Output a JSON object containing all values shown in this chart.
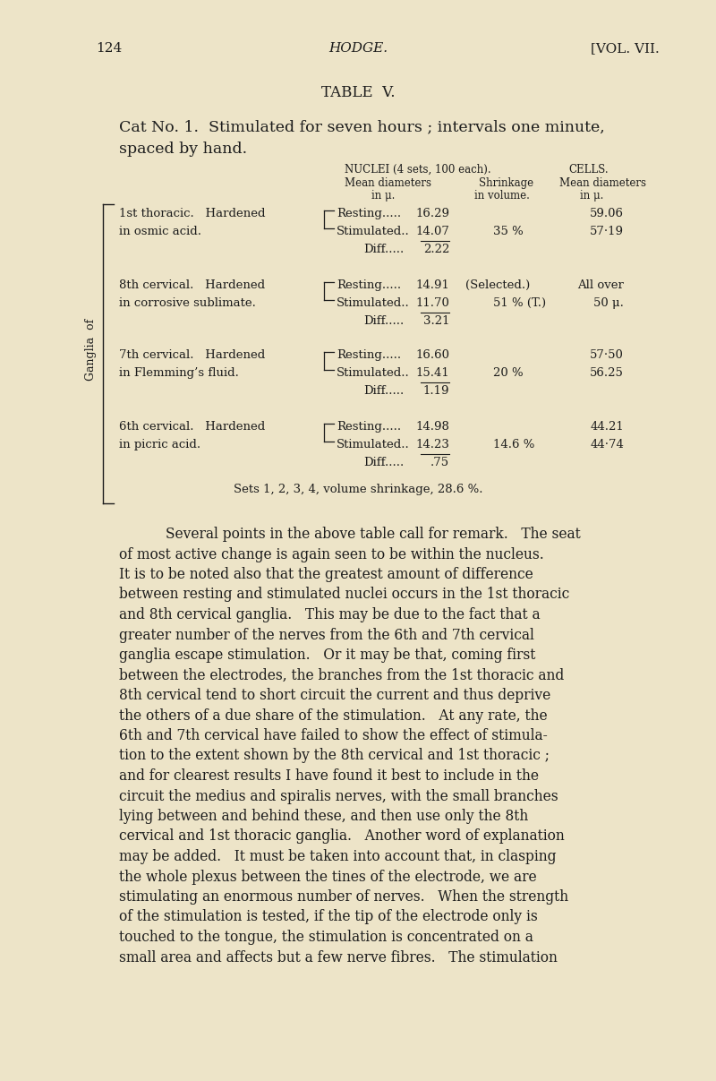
{
  "bg_color": "#ede4c8",
  "text_color": "#1c1c1c",
  "page_number": "124",
  "header_title": "HODGE.",
  "header_right": "[VOL. VII.",
  "table_title": "TABLE  V.",
  "subtitle_line1": "Cat No. 1.  Stimulated for seven hours ; intervals one minute,",
  "subtitle_line2": "spaced by hand.",
  "col_nuclei": "NUCLEI (4 sets, 100 each).",
  "col_nuclei_sub1": "Mean diameters",
  "col_nuclei_sub2": "in μ.",
  "col_shrink": "Shrinkage",
  "col_shrink2": "in volume.",
  "col_cells": "CELLS.",
  "col_cells_sub1": "Mean diameters",
  "col_cells_sub2": "in μ.",
  "ganglia_rotated": "Ganglia  of",
  "table_rows": [
    {
      "line1_left": "1st thoracic.   Hardened",
      "line2_left": "in osmic acid.",
      "resting_val": "16.29",
      "stim_val": "14.07",
      "diff_val": "2.22",
      "shrinkage_val": "35 %",
      "cells_resting": "59.06",
      "cells_stim": "57·19",
      "selected_note": "",
      "cells_resting_special": ""
    },
    {
      "line1_left": "8th cervical.   Hardened",
      "line2_left": "in corrosive sublimate.",
      "resting_val": "14.91",
      "stim_val": "11.70",
      "diff_val": "3.21",
      "shrinkage_val": "51 % (T.)",
      "cells_resting": "All over",
      "cells_stim": "50 μ.",
      "selected_note": "(Selected.)",
      "cells_resting_special": "All over"
    },
    {
      "line1_left": "7th cervical.   Hardened",
      "line2_left": "in Flemming’s fluid.",
      "resting_val": "16.60",
      "stim_val": "15.41",
      "diff_val": "1.19",
      "shrinkage_val": "20 %",
      "cells_resting": "57·50",
      "cells_stim": "56.25",
      "selected_note": "",
      "cells_resting_special": ""
    },
    {
      "line1_left": "6th cervical.   Hardened",
      "line2_left": "in picric acid.",
      "resting_val": "14.98",
      "stim_val": "14.23",
      "diff_val": ".75",
      "shrinkage_val": "14.6 %",
      "cells_resting": "44.21",
      "cells_stim": "44·74",
      "selected_note": "",
      "cells_resting_special": ""
    }
  ],
  "footer": "Sets 1, 2, 3, 4, volume shrinkage, 28.6 %.",
  "body_lines": [
    "Several points in the above table call for remark.   The seat",
    "of most active change is again seen to be within the nucleus.",
    "It is to be noted also that the greatest amount of difference",
    "between resting and stimulated nuclei occurs in the 1st thoracic",
    "and 8th cervical ganglia.   This may be due to the fact that a",
    "greater number of the nerves from the 6th and 7th cervical",
    "ganglia escape stimulation.   Or it may be that, coming first",
    "between the electrodes, the branches from the 1st thoracic and",
    "8th cervical tend to short circuit the current and thus deprive",
    "the others of a due share of the stimulation.   At any rate, the",
    "6th and 7th cervical have failed to show the effect of stimula-",
    "tion to the extent shown by the 8th cervical and 1st thoracic ;",
    "and for clearest results I have found it best to include in the",
    "circuit the medius and spiralis nerves, with the small branches",
    "lying between and behind these, and then use only the 8th",
    "cervical and 1st thoracic ganglia.   Another word of explanation",
    "may be added.   It must be taken into account that, in clasping",
    "the whole plexus between the tines of the electrode, we are",
    "stimulating an enormous number of nerves.   When the strength",
    "of the stimulation is tested, if the tip of the electrode only is",
    "touched to the tongue, the stimulation is concentrated on a",
    "small area and affects but a few nerve fibres.   The stimulation"
  ]
}
